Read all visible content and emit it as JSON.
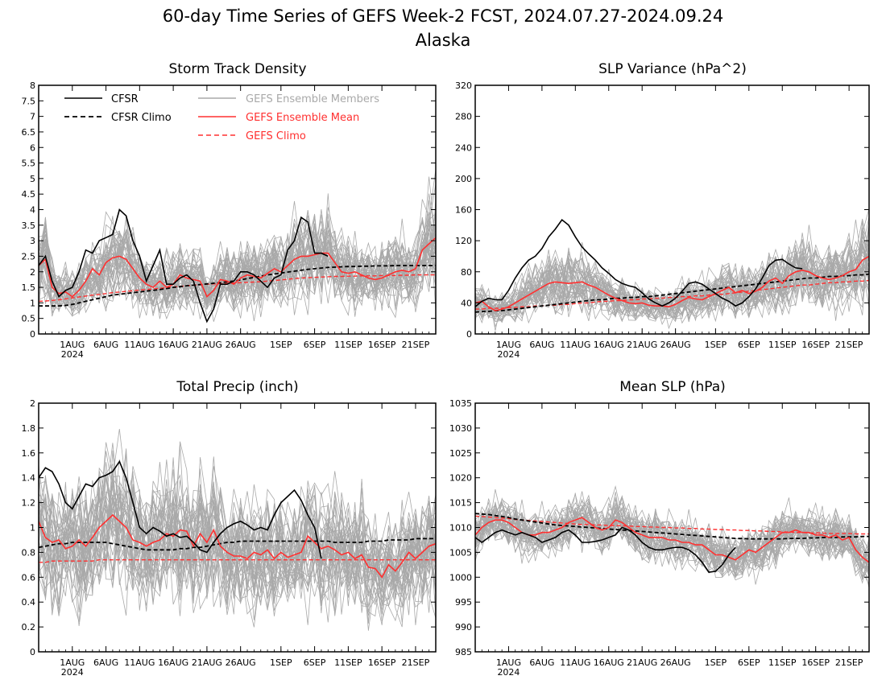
{
  "figure": {
    "title": "60-day Time Series of GEFS Week-2 FCST, 2024.07.27-2024.09.24",
    "subtitle": "Alaska"
  },
  "x_axis": {
    "n_days": 60,
    "tick_labels": [
      "1AUG",
      "6AUG",
      "11AUG",
      "16AUG",
      "21AUG",
      "26AUG",
      "1SEP",
      "6SEP",
      "11SEP",
      "16SEP",
      "21SEP"
    ],
    "tick_days": [
      5,
      10,
      15,
      20,
      25,
      30,
      36,
      41,
      46,
      51,
      56
    ],
    "year_label": "2024"
  },
  "legend": {
    "cfsr": "CFSR",
    "cfsr_climo": "CFSR Climo",
    "members": "GEFS Ensemble Members",
    "ens_mean": "GEFS Ensemble Mean",
    "gefs_climo": "GEFS Climo"
  },
  "colors": {
    "cfsr": "#000000",
    "members": "#a9a9a9",
    "ens_mean": "#ff3030",
    "gefs_climo": "#ff3030"
  },
  "chart_data": [
    {
      "type": "line",
      "title": "Storm Track Density",
      "ylim": [
        0,
        8
      ],
      "yticks": [
        0,
        0.5,
        1,
        1.5,
        2,
        2.5,
        3,
        3.5,
        4,
        4.5,
        5,
        5.5,
        6,
        6.5,
        7,
        7.5,
        8
      ],
      "spread_mode": "ratio",
      "series": [
        {
          "name": "CFSR",
          "values": [
            2.2,
            2.5,
            1.7,
            1.2,
            1.4,
            1.5,
            2.0,
            2.7,
            2.6,
            3.0,
            3.1,
            3.2,
            4.0,
            3.8,
            3.0,
            2.5,
            1.7,
            2.2,
            2.7,
            1.6,
            1.6,
            1.8,
            1.9,
            1.7,
            1.0,
            0.4,
            0.8,
            1.6,
            1.6,
            1.7,
            2.0,
            2.0,
            1.9,
            1.7,
            1.5,
            1.8,
            1.9,
            2.7,
            3.0,
            3.75,
            3.6,
            2.6,
            2.6,
            2.5
          ]
        },
        {
          "name": "CFSR Climo",
          "values": [
            0.9,
            0.9,
            0.9,
            0.9,
            0.92,
            0.95,
            1.0,
            1.05,
            1.1,
            1.15,
            1.2,
            1.25,
            1.28,
            1.3,
            1.33,
            1.35,
            1.38,
            1.4,
            1.43,
            1.46,
            1.5,
            1.52,
            1.55,
            1.57,
            1.59,
            1.61,
            1.63,
            1.65,
            1.68,
            1.7,
            1.74,
            1.78,
            1.82,
            1.86,
            1.9,
            1.93,
            1.96,
            1.99,
            2.02,
            2.05,
            2.08,
            2.1,
            2.12,
            2.14,
            2.15,
            2.16,
            2.17,
            2.17,
            2.18,
            2.18,
            2.19,
            2.19,
            2.19,
            2.2,
            2.2,
            2.2,
            2.2,
            2.2,
            2.2,
            2.2
          ]
        },
        {
          "name": "GEFS Ensemble Mean",
          "values": [
            2.2,
            2.4,
            1.5,
            1.3,
            1.35,
            1.2,
            1.4,
            1.7,
            2.1,
            1.9,
            2.3,
            2.45,
            2.5,
            2.4,
            2.1,
            1.8,
            1.6,
            1.5,
            1.7,
            1.5,
            1.6,
            1.9,
            1.8,
            1.75,
            1.7,
            1.2,
            1.4,
            1.75,
            1.7,
            1.6,
            1.8,
            1.9,
            1.85,
            1.8,
            1.95,
            2.1,
            2.0,
            2.2,
            2.4,
            2.5,
            2.5,
            2.55,
            2.6,
            2.6,
            2.3,
            2.0,
            1.95,
            2.0,
            1.9,
            1.8,
            1.75,
            1.8,
            1.9,
            2.0,
            2.05,
            2.0,
            2.1,
            2.7,
            2.9,
            3.1
          ]
        },
        {
          "name": "GEFS Climo",
          "values": [
            1.05,
            1.06,
            1.08,
            1.1,
            1.13,
            1.16,
            1.19,
            1.22,
            1.25,
            1.27,
            1.3,
            1.33,
            1.35,
            1.37,
            1.39,
            1.41,
            1.43,
            1.45,
            1.47,
            1.49,
            1.51,
            1.53,
            1.55,
            1.57,
            1.58,
            1.6,
            1.61,
            1.62,
            1.63,
            1.64,
            1.65,
            1.66,
            1.67,
            1.68,
            1.7,
            1.72,
            1.74,
            1.76,
            1.78,
            1.8,
            1.81,
            1.82,
            1.83,
            1.84,
            1.85,
            1.85,
            1.86,
            1.86,
            1.87,
            1.87,
            1.87,
            1.88,
            1.88,
            1.88,
            1.89,
            1.89,
            1.9,
            1.9,
            1.9,
            1.9
          ]
        }
      ],
      "members": {
        "count": 40,
        "spread": 0.55
      }
    },
    {
      "type": "line",
      "title": "SLP Variance (hPa^2)",
      "ylim": [
        0,
        320
      ],
      "yticks": [
        0,
        40,
        80,
        120,
        160,
        200,
        240,
        280,
        320
      ],
      "spread_mode": "ratio",
      "series": [
        {
          "name": "CFSR",
          "values": [
            35,
            42,
            46,
            44,
            44,
            56,
            72,
            85,
            95,
            100,
            110,
            125,
            135,
            147,
            140,
            125,
            112,
            103,
            95,
            85,
            78,
            70,
            65,
            62,
            60,
            53,
            45,
            40,
            36,
            40,
            46,
            55,
            65,
            67,
            64,
            58,
            52,
            46,
            42,
            36,
            40,
            48,
            58,
            72,
            88,
            95,
            96,
            90,
            85,
            84
          ]
        },
        {
          "name": "CFSR Climo",
          "values": [
            28,
            29,
            29,
            30,
            30,
            31,
            32,
            33,
            34,
            35,
            36,
            37,
            38,
            39,
            40,
            41,
            42,
            43,
            44,
            44,
            45,
            46,
            46,
            47,
            47,
            48,
            48,
            49,
            50,
            51,
            52,
            53,
            54,
            55,
            56,
            57,
            58,
            59,
            60,
            61,
            62,
            63,
            64,
            65,
            66,
            67,
            68,
            69,
            70,
            71,
            72,
            72,
            73,
            74,
            74,
            75,
            75,
            76,
            76,
            77
          ]
        },
        {
          "name": "GEFS Ensemble Mean",
          "values": [
            40,
            42,
            35,
            30,
            32,
            35,
            40,
            45,
            50,
            55,
            60,
            65,
            67,
            66,
            65,
            66,
            67,
            63,
            60,
            55,
            50,
            46,
            43,
            40,
            39,
            40,
            37,
            36,
            36,
            35,
            38,
            43,
            47,
            45,
            44,
            48,
            52,
            56,
            60,
            53,
            56,
            52,
            55,
            60,
            68,
            72,
            65,
            75,
            80,
            82,
            80,
            75,
            72,
            70,
            72,
            75,
            80,
            83,
            95,
            100
          ]
        },
        {
          "name": "GEFS Climo",
          "values": [
            32,
            32,
            33,
            33,
            33,
            34,
            34,
            35,
            35,
            36,
            36,
            37,
            37,
            38,
            38,
            39,
            40,
            40,
            41,
            42,
            42,
            43,
            43,
            44,
            44,
            45,
            45,
            46,
            46,
            47,
            47,
            48,
            48,
            49,
            49,
            50,
            51,
            51,
            52,
            53,
            54,
            55,
            56,
            57,
            58,
            59,
            60,
            61,
            62,
            63,
            63,
            64,
            65,
            66,
            66,
            67,
            67,
            68,
            68,
            69
          ]
        }
      ],
      "members": {
        "count": 40,
        "spread": 0.55
      }
    },
    {
      "type": "line",
      "title": "Total Precip (inch)",
      "ylim": [
        0,
        2
      ],
      "yticks": [
        0,
        0.2,
        0.4,
        0.6,
        0.8,
        1,
        1.2,
        1.4,
        1.6,
        1.8,
        2
      ],
      "spread_mode": "ratio",
      "series": [
        {
          "name": "CFSR",
          "values": [
            1.4,
            1.48,
            1.45,
            1.35,
            1.2,
            1.15,
            1.25,
            1.35,
            1.33,
            1.4,
            1.42,
            1.45,
            1.53,
            1.4,
            1.2,
            1.0,
            0.95,
            1.0,
            0.97,
            0.93,
            0.95,
            0.92,
            0.93,
            0.88,
            0.82,
            0.8,
            0.88,
            0.95,
            1.0,
            1.03,
            1.05,
            1.02,
            0.98,
            1.0,
            0.98,
            1.1,
            1.2,
            1.25,
            1.3,
            1.22,
            1.1,
            1.0,
            0.75
          ]
        },
        {
          "name": "CFSR Climo",
          "values": [
            0.84,
            0.85,
            0.86,
            0.87,
            0.87,
            0.88,
            0.88,
            0.88,
            0.88,
            0.88,
            0.88,
            0.87,
            0.86,
            0.85,
            0.84,
            0.83,
            0.82,
            0.82,
            0.82,
            0.82,
            0.82,
            0.83,
            0.83,
            0.84,
            0.84,
            0.85,
            0.86,
            0.87,
            0.88,
            0.88,
            0.89,
            0.89,
            0.89,
            0.89,
            0.89,
            0.89,
            0.89,
            0.89,
            0.89,
            0.89,
            0.89,
            0.89,
            0.89,
            0.89,
            0.88,
            0.88,
            0.88,
            0.88,
            0.88,
            0.89,
            0.89,
            0.89,
            0.9,
            0.9,
            0.9,
            0.9,
            0.91,
            0.91,
            0.91,
            0.91
          ]
        },
        {
          "name": "GEFS Ensemble Mean",
          "values": [
            1.05,
            0.92,
            0.88,
            0.9,
            0.83,
            0.85,
            0.9,
            0.85,
            0.92,
            1.0,
            1.05,
            1.1,
            1.05,
            1.0,
            0.9,
            0.88,
            0.85,
            0.88,
            0.9,
            0.95,
            0.93,
            0.98,
            0.97,
            0.85,
            0.95,
            0.88,
            0.98,
            0.85,
            0.8,
            0.77,
            0.77,
            0.75,
            0.8,
            0.78,
            0.82,
            0.75,
            0.8,
            0.76,
            0.78,
            0.8,
            0.93,
            0.88,
            0.83,
            0.85,
            0.82,
            0.78,
            0.8,
            0.75,
            0.78,
            0.68,
            0.67,
            0.6,
            0.7,
            0.65,
            0.72,
            0.8,
            0.75,
            0.8,
            0.85,
            0.87
          ]
        },
        {
          "name": "GEFS Climo",
          "values": [
            0.72,
            0.72,
            0.73,
            0.73,
            0.73,
            0.73,
            0.73,
            0.73,
            0.73,
            0.74,
            0.74,
            0.74,
            0.74,
            0.74,
            0.74,
            0.74,
            0.74,
            0.74,
            0.74,
            0.74,
            0.74,
            0.74,
            0.74,
            0.74,
            0.74,
            0.74,
            0.74,
            0.74,
            0.74,
            0.74,
            0.74,
            0.74,
            0.74,
            0.74,
            0.74,
            0.74,
            0.74,
            0.74,
            0.74,
            0.74,
            0.74,
            0.74,
            0.74,
            0.74,
            0.74,
            0.74,
            0.74,
            0.74,
            0.74,
            0.74,
            0.74,
            0.74,
            0.74,
            0.74,
            0.74,
            0.74,
            0.74,
            0.74,
            0.74,
            0.74
          ]
        }
      ],
      "members": {
        "count": 40,
        "spread": 0.55
      }
    },
    {
      "type": "line",
      "title": "Mean SLP (hPa)",
      "ylim": [
        985,
        1035
      ],
      "yticks": [
        985,
        990,
        995,
        1000,
        1005,
        1010,
        1015,
        1020,
        1025,
        1030,
        1035
      ],
      "spread_mode": "abs",
      "series": [
        {
          "name": "CFSR",
          "values": [
            1008,
            1007,
            1008,
            1009,
            1009.5,
            1009,
            1008.5,
            1009,
            1008.5,
            1008,
            1007,
            1007.5,
            1008,
            1009,
            1009.5,
            1008.5,
            1007,
            1007,
            1007.2,
            1007.5,
            1008,
            1008.5,
            1010,
            1009.5,
            1008.5,
            1007,
            1006,
            1005.5,
            1005.5,
            1005.8,
            1006,
            1006,
            1005.5,
            1004.5,
            1003,
            1001,
            1001.2,
            1002.5,
            1004.5,
            1006
          ]
        },
        {
          "name": "CFSR Climo",
          "values": [
            1012.8,
            1012.7,
            1012.6,
            1012.4,
            1012.2,
            1012.0,
            1011.7,
            1011.5,
            1011.3,
            1011.1,
            1010.9,
            1010.7,
            1010.5,
            1010.4,
            1010.3,
            1010.2,
            1010.1,
            1010.0,
            1009.9,
            1009.8,
            1009.7,
            1009.6,
            1009.5,
            1009.4,
            1009.3,
            1009.2,
            1009.1,
            1009.0,
            1008.9,
            1008.8,
            1008.7,
            1008.6,
            1008.5,
            1008.4,
            1008.3,
            1008.2,
            1008.1,
            1008.0,
            1007.9,
            1007.8,
            1007.8,
            1007.7,
            1007.7,
            1007.7,
            1007.7,
            1007.7,
            1007.7,
            1007.8,
            1007.8,
            1007.8,
            1007.9,
            1007.9,
            1008.0,
            1008.0,
            1008.0,
            1008.1,
            1008.1,
            1008.1,
            1008.2,
            1008.2
          ]
        },
        {
          "name": "GEFS Ensemble Mean",
          "values": [
            1008.5,
            1010,
            1011,
            1011.5,
            1011.5,
            1011,
            1010,
            1009,
            1008.5,
            1008.5,
            1009,
            1009,
            1009.5,
            1010,
            1011,
            1011.5,
            1012,
            1011,
            1010,
            1009.5,
            1010,
            1011.5,
            1011,
            1010,
            1009,
            1008.5,
            1008,
            1008,
            1008,
            1007.5,
            1007.5,
            1007,
            1007,
            1006.5,
            1006.5,
            1005.5,
            1004.5,
            1004.5,
            1004,
            1003.5,
            1004.5,
            1005.5,
            1005,
            1006,
            1007,
            1008,
            1009,
            1009,
            1009.5,
            1009,
            1009,
            1008.5,
            1008.5,
            1008,
            1008.5,
            1007.5,
            1008,
            1005.5,
            1004,
            1003
          ]
        },
        {
          "name": "GEFS Climo",
          "values": [
            1012.3,
            1012.2,
            1012.1,
            1012.0,
            1011.9,
            1011.8,
            1011.6,
            1011.5,
            1011.4,
            1011.3,
            1011.2,
            1011.1,
            1011.0,
            1010.9,
            1010.8,
            1010.7,
            1010.6,
            1010.6,
            1010.5,
            1010.5,
            1010.4,
            1010.4,
            1010.3,
            1010.3,
            1010.2,
            1010.2,
            1010.1,
            1010.1,
            1010.0,
            1010.0,
            1009.9,
            1009.9,
            1009.8,
            1009.8,
            1009.7,
            1009.7,
            1009.6,
            1009.6,
            1009.5,
            1009.5,
            1009.4,
            1009.4,
            1009.3,
            1009.3,
            1009.2,
            1009.2,
            1009.1,
            1009.1,
            1009.0,
            1009.0,
            1008.9,
            1008.9,
            1008.9,
            1008.8,
            1008.8,
            1008.8,
            1008.8,
            1008.7,
            1008.7,
            1008.7
          ]
        }
      ],
      "members": {
        "count": 40,
        "spread": 4.5
      }
    }
  ]
}
